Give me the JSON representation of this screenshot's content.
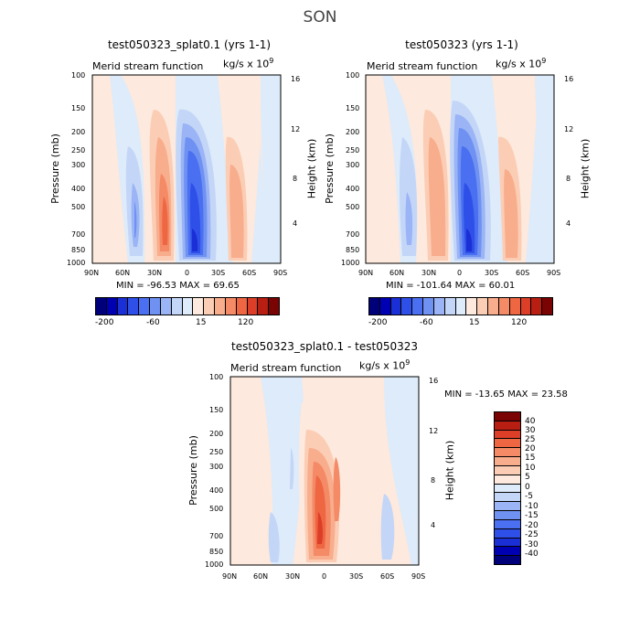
{
  "figure": {
    "season": "SON",
    "units_text": "kg/s x 10",
    "units_exp": "9"
  },
  "colors": {
    "levels": [
      "#00007a",
      "#0000b3",
      "#1a2fd6",
      "#2f50e8",
      "#4a6ff0",
      "#6f92f2",
      "#9ab4f5",
      "#c4d6f7",
      "#ddebfa",
      "#fde9dd",
      "#fbcdb5",
      "#f8ad8c",
      "#f48a66",
      "#ee6642",
      "#dc3e27",
      "#b81e12",
      "#7a0404"
    ]
  },
  "chart_data": [
    {
      "type": "heatmap",
      "title": "test050323_splat0.1 (yrs 1-1)",
      "subtitle": "Merid stream function",
      "units": "kg/s x 10^9",
      "xlabel": "",
      "ylabel": "Pressure (mb)",
      "y2label": "Height (km)",
      "x_ticks": [
        "90N",
        "60N",
        "30N",
        "0",
        "30S",
        "60S",
        "90S"
      ],
      "y_ticks": [
        100,
        150,
        200,
        250,
        300,
        400,
        500,
        700,
        850,
        1000
      ],
      "y2_ticks": [
        16,
        12,
        8,
        4
      ],
      "ylim": [
        1000,
        100
      ],
      "min": -96.53,
      "max": 69.65,
      "stats_text": "MIN = -96.53   MAX =  69.65",
      "colorbar_labels": [
        "-200",
        "-60",
        "15",
        "120"
      ],
      "cells": [
        {
          "lat": 45,
          "p": 480,
          "value": -45
        },
        {
          "lat": 20,
          "p": 600,
          "value": 60
        },
        {
          "lat": -5,
          "p": 600,
          "value": -90
        },
        {
          "lat": -45,
          "p": 500,
          "value": 35
        }
      ]
    },
    {
      "type": "heatmap",
      "title": "test050323 (yrs 1-1)",
      "subtitle": "Merid stream function",
      "units": "kg/s x 10^9",
      "xlabel": "",
      "ylabel": "Pressure (mb)",
      "y2label": "Height (km)",
      "x_ticks": [
        "90N",
        "60N",
        "30N",
        "0",
        "30S",
        "60S",
        "90S"
      ],
      "y_ticks": [
        100,
        150,
        200,
        250,
        300,
        400,
        500,
        700,
        850,
        1000
      ],
      "y2_ticks": [
        16,
        12,
        8,
        4
      ],
      "ylim": [
        1000,
        100
      ],
      "min": -101.64,
      "max": 60.01,
      "stats_text": "MIN = -101.64   MAX =  60.01",
      "colorbar_labels": [
        "-200",
        "-60",
        "15",
        "120"
      ],
      "cells": [
        {
          "lat": 50,
          "p": 550,
          "value": -30
        },
        {
          "lat": 20,
          "p": 600,
          "value": 55
        },
        {
          "lat": -5,
          "p": 600,
          "value": -95
        },
        {
          "lat": -45,
          "p": 500,
          "value": 35
        }
      ]
    },
    {
      "type": "heatmap",
      "title": "test050323_splat0.1 - test050323",
      "subtitle": "Merid stream function",
      "units": "kg/s x 10^9",
      "xlabel": "",
      "ylabel": "Pressure (mb)",
      "y2label": "Height (km)",
      "x_ticks": [
        "90N",
        "60N",
        "30N",
        "0",
        "30S",
        "60S",
        "90S"
      ],
      "y_ticks": [
        100,
        150,
        200,
        250,
        300,
        400,
        500,
        700,
        850,
        1000
      ],
      "y2_ticks": [
        16,
        12,
        8,
        4
      ],
      "ylim": [
        1000,
        100
      ],
      "min": -13.65,
      "max": 23.58,
      "stats_text": "MIN = -13.65   MAX =   23.58",
      "colorbar_labels": [
        "40",
        "30",
        "25",
        "20",
        "15",
        "10",
        "5",
        "0",
        "-5",
        "-10",
        "-15",
        "-20",
        "-25",
        "-30",
        "-40"
      ],
      "cells": [
        {
          "lat": 5,
          "p": 650,
          "value": 20
        },
        {
          "lat": -5,
          "p": 350,
          "value": 15
        },
        {
          "lat": 45,
          "p": 650,
          "value": -8
        }
      ]
    }
  ]
}
